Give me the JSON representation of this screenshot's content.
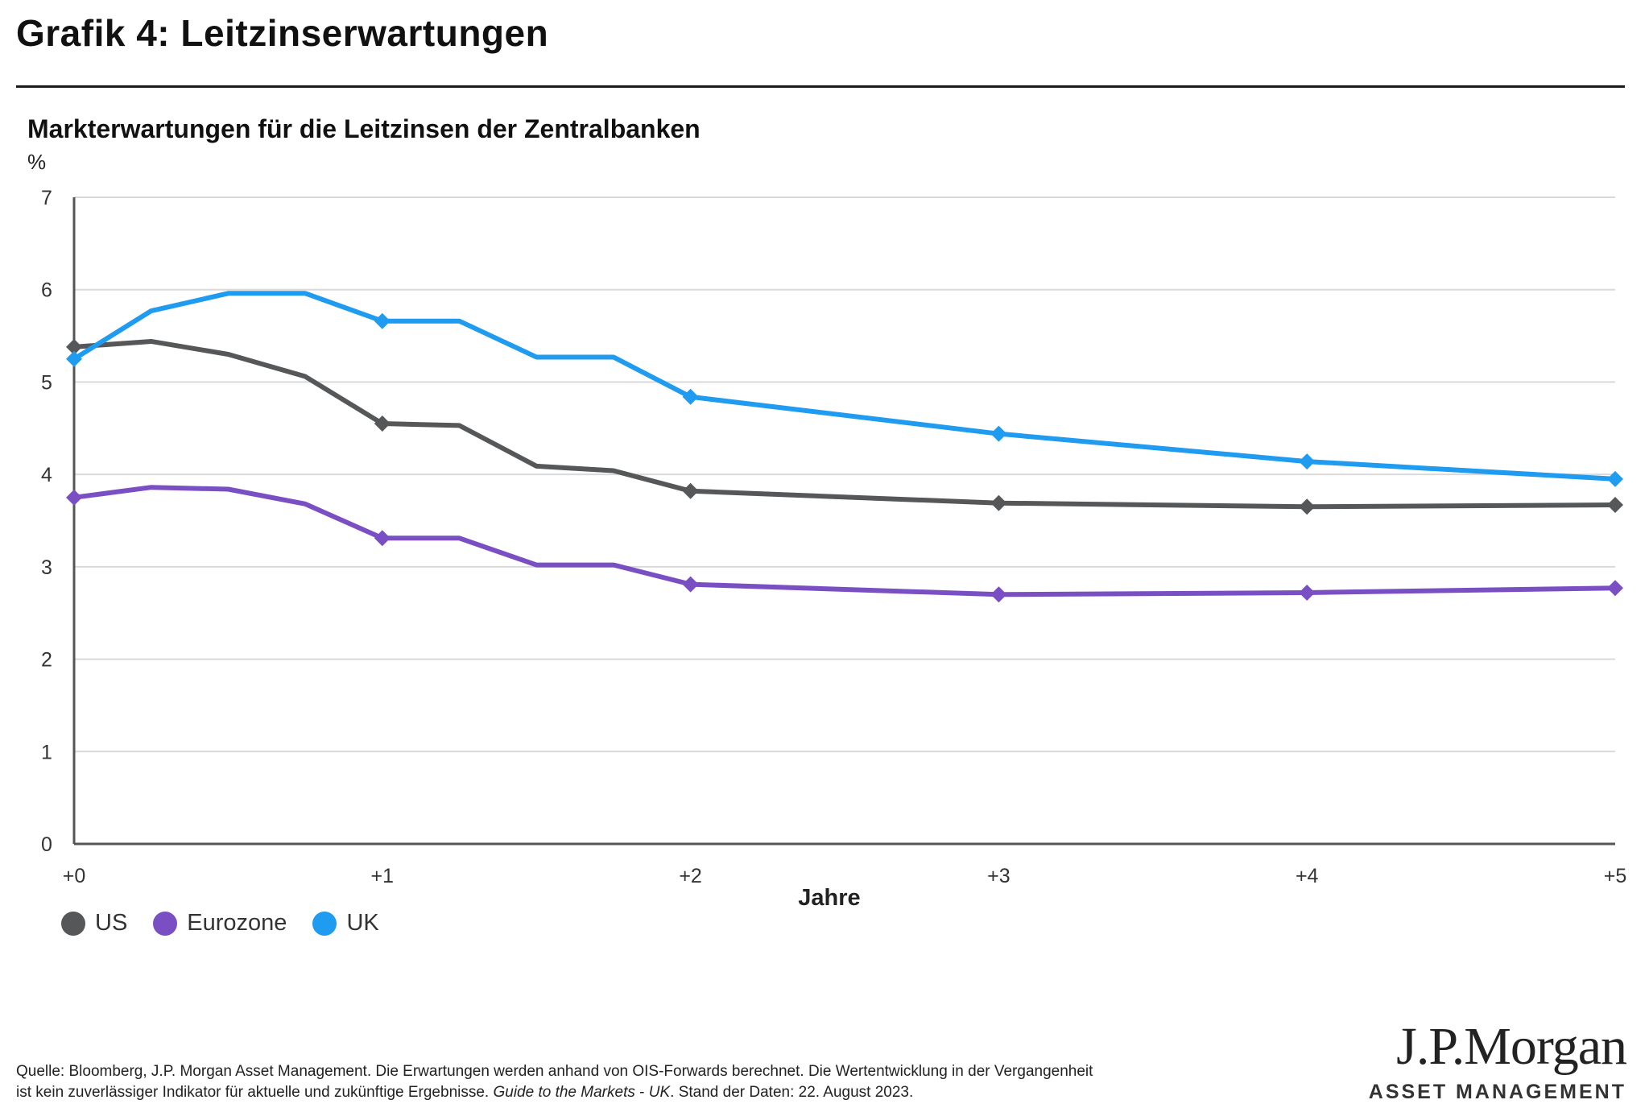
{
  "header": {
    "title": "Grafik 4: Leitzinserwartungen"
  },
  "chart_data": {
    "type": "line",
    "title": "Markterwartungen für die Leitzinsen der Zentralbanken",
    "ylabel": "%",
    "xlabel": "Jahre",
    "ylim": [
      0,
      7
    ],
    "yticks": [
      "0",
      "1",
      "2",
      "3",
      "4",
      "5",
      "6",
      "7"
    ],
    "xlim": [
      0,
      5
    ],
    "xticks": [
      "+0",
      "+1",
      "+2",
      "+3",
      "+4",
      "+5"
    ],
    "grid": true,
    "legend_position": "bottom-left",
    "series": [
      {
        "name": "US",
        "color": "#555759",
        "x": [
          0,
          0.25,
          0.5,
          0.75,
          1,
          1.25,
          1.5,
          1.75,
          2,
          3,
          4,
          5
        ],
        "values": [
          5.38,
          5.44,
          5.3,
          5.06,
          4.55,
          4.53,
          4.09,
          4.04,
          3.82,
          3.69,
          3.65,
          3.67
        ],
        "markers_at": [
          0,
          1,
          2,
          3,
          4,
          5
        ]
      },
      {
        "name": "Eurozone",
        "color": "#7a4fc4",
        "x": [
          0,
          0.25,
          0.5,
          0.75,
          1,
          1.25,
          1.5,
          1.75,
          2,
          3,
          4,
          5
        ],
        "values": [
          3.75,
          3.86,
          3.84,
          3.68,
          3.31,
          3.31,
          3.02,
          3.02,
          2.81,
          2.7,
          2.72,
          2.77
        ],
        "markers_at": [
          0,
          1,
          2,
          3,
          4,
          5
        ]
      },
      {
        "name": "UK",
        "color": "#1f9bef",
        "x": [
          0,
          0.25,
          0.5,
          0.75,
          1,
          1.25,
          1.5,
          1.75,
          2,
          3,
          4,
          5
        ],
        "values": [
          5.25,
          5.77,
          5.96,
          5.96,
          5.66,
          5.66,
          5.27,
          5.27,
          4.84,
          4.44,
          4.14,
          3.95
        ],
        "markers_at": [
          0,
          1,
          2,
          3,
          4,
          5
        ]
      }
    ]
  },
  "footer": {
    "source_line1": "Quelle: Bloomberg, J.P. Morgan Asset Management. Die Erwartungen werden anhand von OIS-Forwards berechnet. Die Wertentwicklung in der Vergangenheit",
    "source_line2_a": "ist kein zuverlässiger Indikator für aktuelle und zukünftige Ergebnisse.",
    "source_line2_italic_a": "Guide to the Markets",
    "source_line2_b": " - ",
    "source_line2_italic_b": "UK",
    "source_line2_c": ". Stand der Daten: 22. August 2023.",
    "logo_main": "J.P.Morgan",
    "logo_sub": "ASSET MANAGEMENT"
  }
}
